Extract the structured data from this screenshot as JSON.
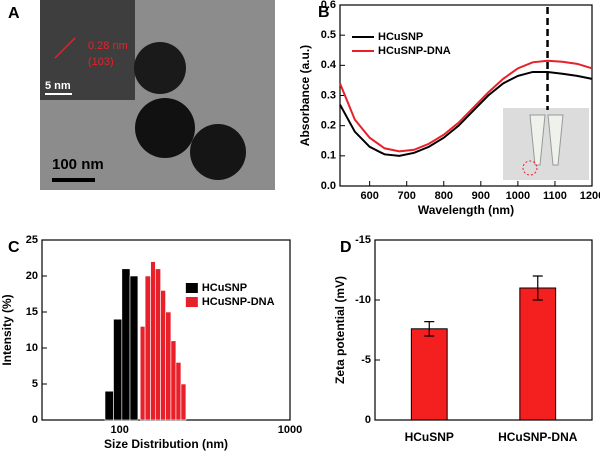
{
  "panel_a": {
    "label": "A",
    "lattice": "0.28 nm",
    "plane": "(103)",
    "inset_scale": "5 nm",
    "scale": "100 nm"
  },
  "chart_data": [
    {
      "type": "line",
      "panel_label": "B",
      "xlabel": "Wavelength (nm)",
      "ylabel": "Absorbance (a.u.)",
      "x": [
        520,
        560,
        600,
        640,
        680,
        720,
        760,
        800,
        840,
        880,
        920,
        960,
        1000,
        1040,
        1080,
        1120,
        1160,
        1200
      ],
      "series": [
        {
          "name": "HCuSNP",
          "color": "#000000",
          "values": [
            0.27,
            0.18,
            0.13,
            0.105,
            0.1,
            0.11,
            0.13,
            0.16,
            0.2,
            0.25,
            0.3,
            0.34,
            0.365,
            0.378,
            0.378,
            0.372,
            0.365,
            0.355
          ]
        },
        {
          "name": "HCuSNP-DNA",
          "color": "#e8202a",
          "values": [
            0.34,
            0.22,
            0.16,
            0.125,
            0.115,
            0.12,
            0.14,
            0.17,
            0.21,
            0.26,
            0.31,
            0.355,
            0.39,
            0.41,
            0.415,
            0.412,
            0.405,
            0.39
          ]
        }
      ],
      "vline": 1080,
      "xlim": [
        520,
        1200
      ],
      "xticks": [
        600,
        700,
        800,
        900,
        1000,
        1100,
        1200
      ],
      "ylim": [
        0,
        0.6
      ],
      "yticks": [
        {
          "value": 0,
          "label": "0.0"
        },
        0.1,
        0.2,
        0.3,
        0.4,
        0.5,
        0.6
      ],
      "legend": "upper left"
    },
    {
      "type": "histogram",
      "panel_label": "C",
      "xlabel": "Size Distribution (nm)",
      "ylabel": "Intensity (%)",
      "series": [
        {
          "name": "HCuSNP",
          "color": "#000000",
          "bins": [
            82,
            92,
            103,
            115,
            128
          ],
          "values": [
            4,
            14,
            21,
            20
          ]
        },
        {
          "name": "HCuSNP-DNA",
          "color": "#e8202a",
          "bins": [
            132,
            141,
            152,
            162,
            174,
            186,
            200,
            214,
            229,
            245
          ],
          "values": [
            13,
            20,
            22,
            21,
            18,
            15,
            11,
            8,
            5
          ]
        }
      ],
      "xlog": true,
      "xlim": [
        35,
        1000
      ],
      "xticks": [
        100,
        1000
      ],
      "ylim": [
        0,
        25
      ],
      "yticks": [
        0,
        5,
        10,
        15,
        20,
        25
      ],
      "legend": "upper right"
    },
    {
      "type": "bar",
      "panel_label": "D",
      "ylabel": "Zeta potential (mV)",
      "categories": [
        "HCuSNP",
        "HCuSNP-DNA"
      ],
      "values": [
        -7.6,
        -11.0
      ],
      "errors": [
        0.6,
        1.0
      ],
      "color": "#f42020",
      "ylim": [
        0,
        -15
      ],
      "yticks": [
        -15,
        -10,
        -5,
        0
      ]
    }
  ]
}
